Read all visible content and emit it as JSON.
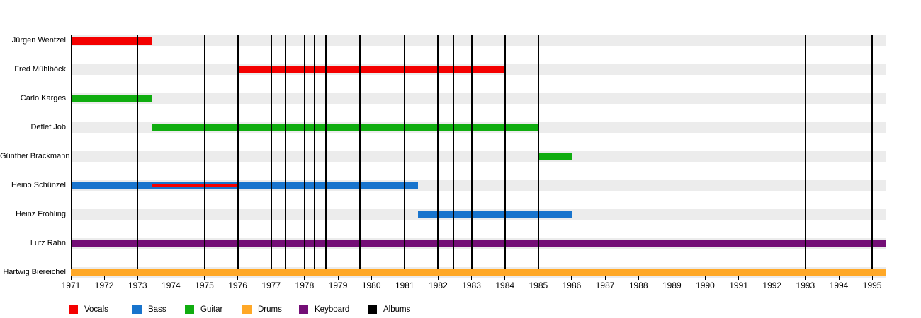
{
  "chart_data": {
    "type": "timeline",
    "description": "Band member timeline with instrument roles and album release markers",
    "x_axis": {
      "domain_start": 1971,
      "domain_end": 1995.4,
      "tick_years": [
        1971,
        1972,
        1973,
        1974,
        1975,
        1976,
        1977,
        1978,
        1979,
        1980,
        1981,
        1982,
        1983,
        1984,
        1985,
        1986,
        1987,
        1988,
        1989,
        1990,
        1991,
        1992,
        1993,
        1994,
        1995
      ]
    },
    "legend": [
      {
        "label": "Vocals",
        "color": "#f40000"
      },
      {
        "label": "Bass",
        "color": "#1874cd"
      },
      {
        "label": "Guitar",
        "color": "#10ad10"
      },
      {
        "label": "Drums",
        "color": "#ffa827"
      },
      {
        "label": "Keyboard",
        "color": "#740e76"
      },
      {
        "label": "Albums",
        "color": "#000000"
      }
    ],
    "rows": [
      {
        "name": "Jürgen Wentzel",
        "bars": [
          {
            "role": "Vocals",
            "start": 1971,
            "end": 1973.42
          }
        ]
      },
      {
        "name": "Fred Mühlböck",
        "bars": [
          {
            "role": "Vocals",
            "start": 1976,
            "end": 1984
          }
        ]
      },
      {
        "name": "Carlo Karges",
        "bars": [
          {
            "role": "Guitar",
            "start": 1971,
            "end": 1973.42
          }
        ]
      },
      {
        "name": "Detlef Job",
        "bars": [
          {
            "role": "Guitar",
            "start": 1973.42,
            "end": 1985
          }
        ]
      },
      {
        "name": "Günther Brackmann",
        "bars": [
          {
            "role": "Guitar",
            "start": 1985,
            "end": 1986
          }
        ]
      },
      {
        "name": "Heino Schünzel",
        "bars": [
          {
            "role": "Bass",
            "start": 1971,
            "end": 1981.39
          },
          {
            "role": "Vocals",
            "start": 1973.42,
            "end": 1976,
            "overlay": true
          }
        ]
      },
      {
        "name": "Heinz Frohling",
        "bars": [
          {
            "role": "Bass",
            "start": 1981.39,
            "end": 1986
          }
        ]
      },
      {
        "name": "Lutz Rahn",
        "bars": [
          {
            "role": "Keyboard",
            "start": 1971,
            "end": 1995.4
          }
        ]
      },
      {
        "name": "Hartwig Biereichel",
        "bars": [
          {
            "role": "Drums",
            "start": 1971,
            "end": 1995.4
          }
        ]
      }
    ],
    "album_lines": [
      1973,
      1975,
      1976,
      1977,
      1977.42,
      1978,
      1978.3,
      1978.63,
      1979.66,
      1981,
      1982,
      1982.45,
      1983,
      1984,
      1985,
      1993,
      1995
    ]
  }
}
